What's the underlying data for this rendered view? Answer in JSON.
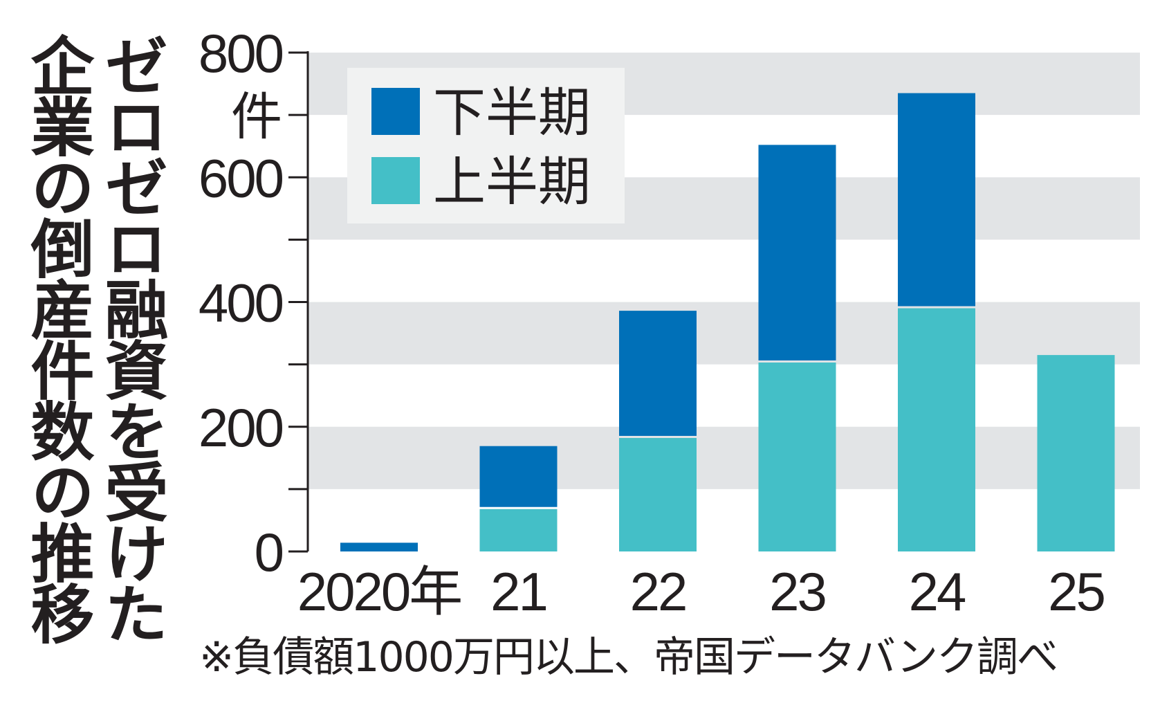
{
  "title_lines": [
    "ゼロゼロ融資を受けた",
    "企業の倒産件数の推移"
  ],
  "note": "※負債額1000万円以上、帝国データバンク調べ",
  "colors": {
    "upper_half": "#0070b8",
    "lower_half": "#44bfc7",
    "band": "#e2e4e6",
    "legend_bg": "#f1f2f2",
    "text": "#231f20"
  },
  "chart_data": {
    "type": "bar",
    "stacked": true,
    "categories": [
      "2020年",
      "21",
      "22",
      "23",
      "24",
      "25"
    ],
    "series": [
      {
        "name": "上半期",
        "values": [
          0,
          68,
          182,
          303,
          390,
          315
        ]
      },
      {
        "name": "下半期",
        "values": [
          14,
          101,
          204,
          349,
          345,
          0
        ]
      }
    ],
    "ylim": [
      0,
      800
    ],
    "yticks": [
      0,
      200,
      400,
      600,
      800
    ],
    "ylabel": "件",
    "grid": "alternating bands every 100",
    "legend_position": "top-left"
  }
}
